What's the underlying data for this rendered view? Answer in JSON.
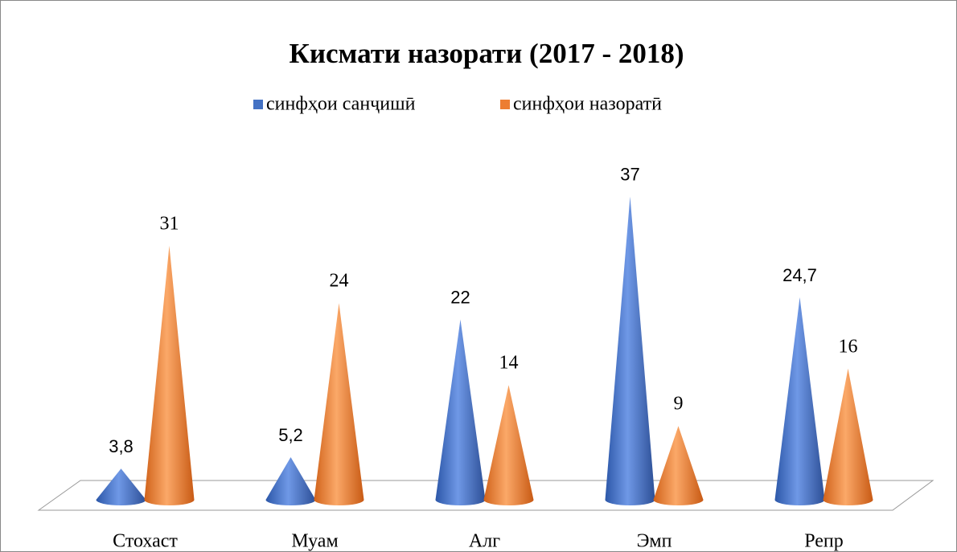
{
  "chart_data": {
    "type": "cone",
    "title": "Кисмати назорати  (2017 - 2018)",
    "categories": [
      "Стохаст",
      "Муам",
      "Алг",
      "Эмп",
      "Репр"
    ],
    "series": [
      {
        "name": "синфҳои санҷишӣ",
        "color": "#4472c4",
        "values": [
          3.8,
          5.2,
          22,
          37,
          24.7
        ],
        "value_labels": [
          "3,8",
          "5,2",
          "22",
          "37",
          "24,7"
        ]
      },
      {
        "name": "синфҳои назоратӣ",
        "color": "#ed7d31",
        "values": [
          31,
          24,
          14,
          9,
          16
        ]
      }
    ],
    "ylim": [
      0,
      40
    ],
    "legend": "top"
  }
}
